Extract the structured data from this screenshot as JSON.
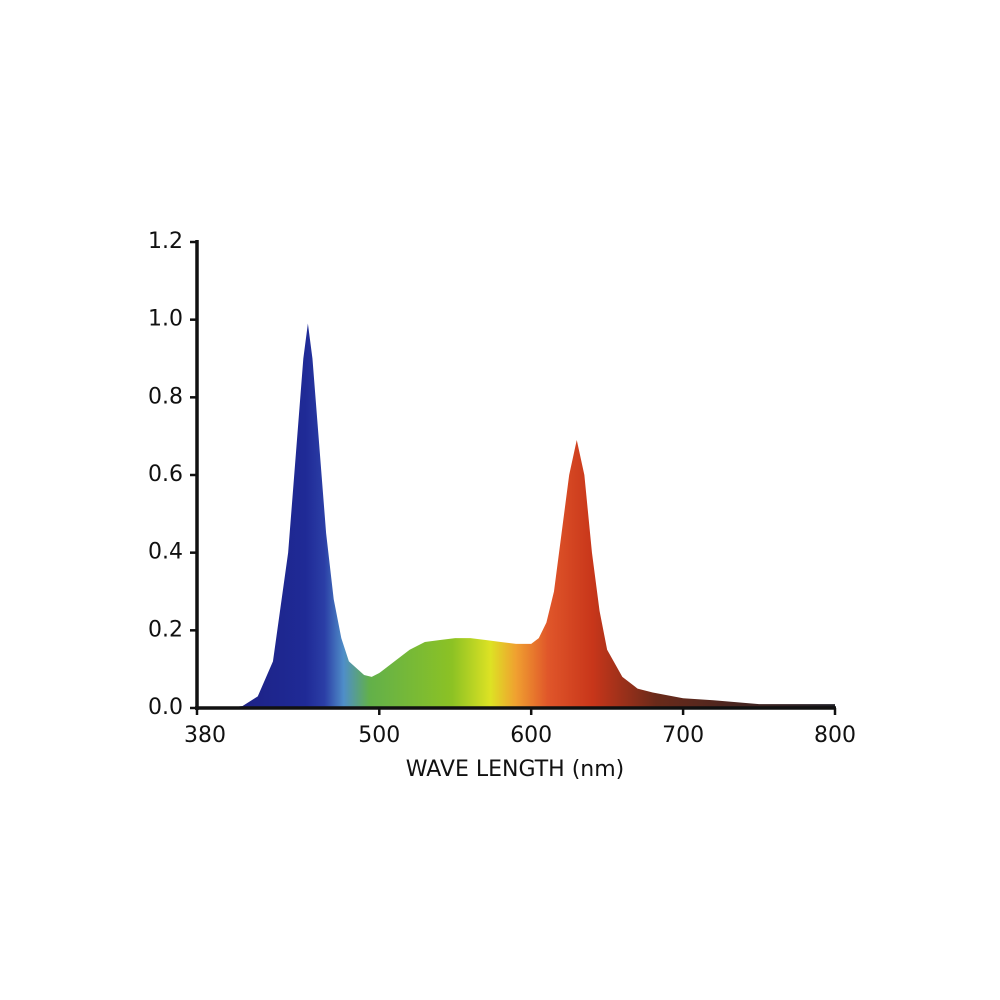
{
  "chart_data": {
    "type": "area",
    "xlabel": "WAVE LENGTH (nm)",
    "x": [
      380,
      400,
      410,
      420,
      430,
      440,
      445,
      450,
      453,
      456,
      460,
      465,
      470,
      475,
      480,
      490,
      495,
      500,
      510,
      520,
      530,
      540,
      550,
      560,
      570,
      580,
      590,
      600,
      605,
      610,
      615,
      620,
      625,
      630,
      635,
      640,
      645,
      650,
      660,
      670,
      680,
      700,
      720,
      750,
      780,
      800
    ],
    "values": [
      0,
      0,
      0.005,
      0.03,
      0.12,
      0.4,
      0.65,
      0.9,
      0.99,
      0.9,
      0.7,
      0.45,
      0.28,
      0.18,
      0.12,
      0.085,
      0.08,
      0.09,
      0.12,
      0.15,
      0.17,
      0.175,
      0.18,
      0.18,
      0.175,
      0.17,
      0.165,
      0.165,
      0.18,
      0.22,
      0.3,
      0.45,
      0.6,
      0.69,
      0.6,
      0.4,
      0.25,
      0.15,
      0.08,
      0.05,
      0.04,
      0.025,
      0.02,
      0.01,
      0.01,
      0.01
    ],
    "xlim": [
      380,
      800
    ],
    "xticks": [
      380,
      500,
      600,
      700,
      800
    ],
    "ylim": [
      0,
      1.2
    ],
    "yticks": [
      {
        "value": 0,
        "label": "0.0"
      },
      {
        "value": 0.2,
        "label": "0.2"
      },
      {
        "value": 0.4,
        "label": "0.4"
      },
      {
        "value": 0.6,
        "label": "0.6"
      },
      {
        "value": 0.8,
        "label": "0.8"
      },
      {
        "value": 1,
        "label": "1.0"
      },
      {
        "value": 1.2,
        "label": "1.2"
      }
    ]
  }
}
